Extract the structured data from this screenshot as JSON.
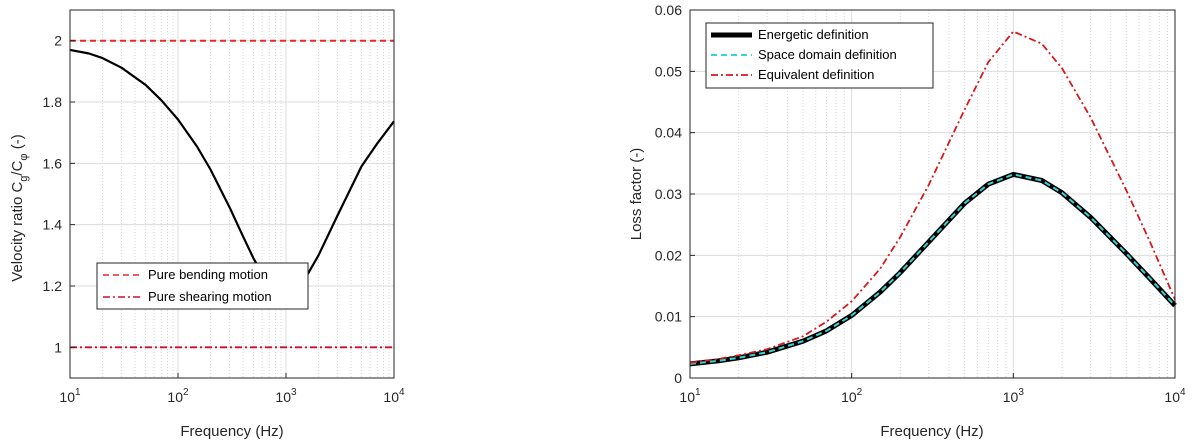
{
  "chart_data": [
    {
      "type": "line",
      "xscale": "log",
      "xlim": [
        10,
        10000
      ],
      "ylim": [
        0.9,
        2.1
      ],
      "xlabel": "Frequency (Hz)",
      "ylabel": {
        "main": "Velocity ratio C",
        "sub1": "g",
        "sep": "/C",
        "sub2": "φ",
        "tail": " (-)"
      },
      "x_ticks": [
        {
          "value": 10,
          "base": "10",
          "exp": "1"
        },
        {
          "value": 100,
          "base": "10",
          "exp": "2"
        },
        {
          "value": 1000,
          "base": "10",
          "exp": "3"
        },
        {
          "value": 10000,
          "base": "10",
          "exp": "4"
        }
      ],
      "y_ticks": [
        {
          "value": 1,
          "label": "1"
        },
        {
          "value": 1.2,
          "label": "1.2"
        },
        {
          "value": 1.4,
          "label": "1.4"
        },
        {
          "value": 1.6,
          "label": "1.6"
        },
        {
          "value": 1.8,
          "label": "1.8"
        },
        {
          "value": 2,
          "label": "2"
        }
      ],
      "grid": true,
      "legend_position": "lower-left",
      "series": [
        {
          "name": "Pure bending motion",
          "style": "dashed",
          "color": "#e8262b",
          "x": [
            10,
            10000
          ],
          "y": [
            2,
            2
          ]
        },
        {
          "name": "Pure shearing motion",
          "style": "dashdot",
          "color": "#c8102e",
          "x": [
            10,
            10000
          ],
          "y": [
            1,
            1
          ]
        },
        {
          "name": "",
          "style": "solid",
          "color": "#000000",
          "x": [
            10,
            15,
            20,
            30,
            50,
            70,
            100,
            150,
            200,
            300,
            400,
            500,
            700,
            1000,
            1300,
            1600,
            2000,
            3000,
            4000,
            5000,
            7000,
            10000
          ],
          "y": [
            1.97,
            1.958,
            1.943,
            1.912,
            1.856,
            1.806,
            1.743,
            1.655,
            1.58,
            1.457,
            1.362,
            1.29,
            1.2,
            1.175,
            1.198,
            1.24,
            1.3,
            1.43,
            1.52,
            1.59,
            1.665,
            1.737
          ]
        }
      ]
    },
    {
      "type": "line",
      "xscale": "log",
      "xlim": [
        10,
        10000
      ],
      "ylim": [
        0,
        0.06
      ],
      "xlabel": "Frequency (Hz)",
      "ylabel": "Loss factor (-)",
      "x_ticks": [
        {
          "value": 10,
          "base": "10",
          "exp": "1"
        },
        {
          "value": 100,
          "base": "10",
          "exp": "2"
        },
        {
          "value": 1000,
          "base": "10",
          "exp": "3"
        },
        {
          "value": 10000,
          "base": "10",
          "exp": "4"
        }
      ],
      "y_ticks": [
        {
          "value": 0,
          "label": "0"
        },
        {
          "value": 0.01,
          "label": "0.01"
        },
        {
          "value": 0.02,
          "label": "0.02"
        },
        {
          "value": 0.03,
          "label": "0.03"
        },
        {
          "value": 0.04,
          "label": "0.04"
        },
        {
          "value": 0.05,
          "label": "0.05"
        },
        {
          "value": 0.06,
          "label": "0.06"
        }
      ],
      "grid": true,
      "legend_position": "top-left",
      "series": [
        {
          "name": "Energetic definition",
          "style": "thick-solid",
          "color": "#000000",
          "x": [
            10,
            15,
            20,
            30,
            50,
            70,
            100,
            150,
            200,
            300,
            500,
            700,
            1000,
            1500,
            2000,
            3000,
            5000,
            7000,
            10000
          ],
          "y": [
            0.0023,
            0.0028,
            0.0033,
            0.0042,
            0.006,
            0.0077,
            0.0102,
            0.014,
            0.0172,
            0.0222,
            0.0285,
            0.0316,
            0.0332,
            0.0322,
            0.0302,
            0.0262,
            0.0203,
            0.0162,
            0.0118
          ]
        },
        {
          "name": "Space domain definition",
          "style": "dashed",
          "color": "#33d6d6",
          "x": [
            10,
            15,
            20,
            30,
            50,
            70,
            100,
            150,
            200,
            300,
            500,
            700,
            1000,
            1500,
            2000,
            3000,
            5000,
            7000,
            10000
          ],
          "y": [
            0.0023,
            0.0028,
            0.0033,
            0.0042,
            0.006,
            0.0077,
            0.0102,
            0.014,
            0.0172,
            0.0222,
            0.0285,
            0.0316,
            0.0332,
            0.0322,
            0.0302,
            0.0262,
            0.0203,
            0.0162,
            0.0118
          ]
        },
        {
          "name": "Equivalent definition",
          "style": "dashdot",
          "color": "#d7191c",
          "x": [
            10,
            15,
            20,
            30,
            50,
            70,
            100,
            150,
            200,
            300,
            500,
            700,
            1000,
            1500,
            2000,
            3000,
            5000,
            7000,
            10000
          ],
          "y": [
            0.0025,
            0.0031,
            0.0037,
            0.0047,
            0.0068,
            0.0092,
            0.0125,
            0.0178,
            0.023,
            0.0315,
            0.0438,
            0.0515,
            0.0565,
            0.0545,
            0.0505,
            0.0425,
            0.0306,
            0.0222,
            0.0128
          ]
        }
      ]
    }
  ]
}
